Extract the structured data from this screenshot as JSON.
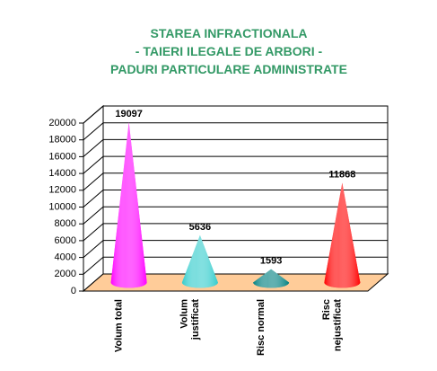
{
  "chart_data": {
    "type": "cone3d",
    "title": [
      "STAREA INFRACTIONALA",
      "- TAIERI ILEGALE DE ARBORI -",
      "PADURI PARTICULARE ADMINISTRATE"
    ],
    "title_color": "#339966",
    "categories": [
      "Volum total",
      "Volum\njustificat",
      "Risc normal",
      "Risc\nnejustificat"
    ],
    "values": [
      19097,
      5636,
      1593,
      11868
    ],
    "colors": [
      "#ff00ff",
      "#33cccc",
      "#008080",
      "#ff0000"
    ],
    "floor_color": "#ffcc99",
    "ylim": [
      0,
      20000
    ],
    "yticks": [
      0,
      2000,
      4000,
      6000,
      8000,
      10000,
      12000,
      14000,
      16000,
      18000,
      20000
    ],
    "grid": true
  }
}
